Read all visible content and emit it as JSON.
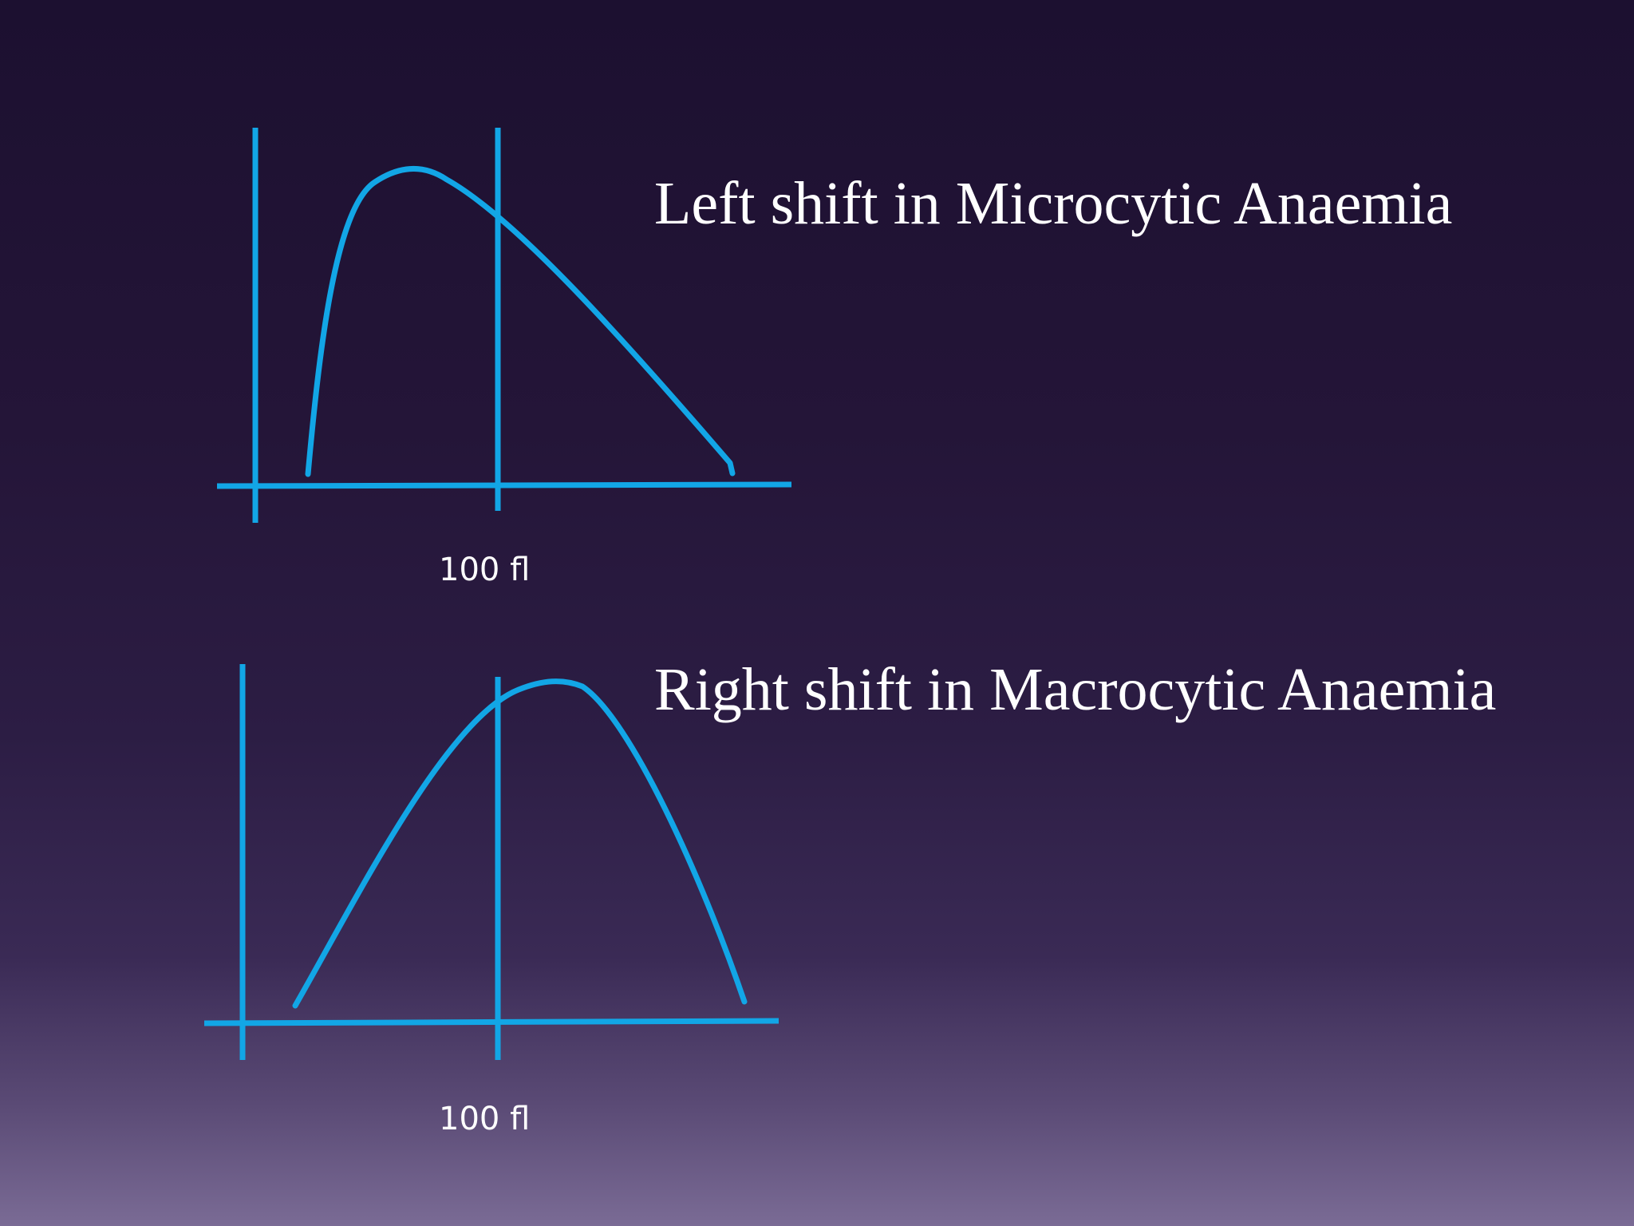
{
  "colors": {
    "line": "#12a6e6",
    "text": "#ffffff"
  },
  "panels": [
    {
      "heading": "Left shift in Microcytic Anaemia",
      "marker_label": "100 fl",
      "shape": "left-skewed"
    },
    {
      "heading": "Right shift in Macrocytic Anaemia",
      "marker_label": "100 fl",
      "shape": "right-skewed"
    }
  ]
}
